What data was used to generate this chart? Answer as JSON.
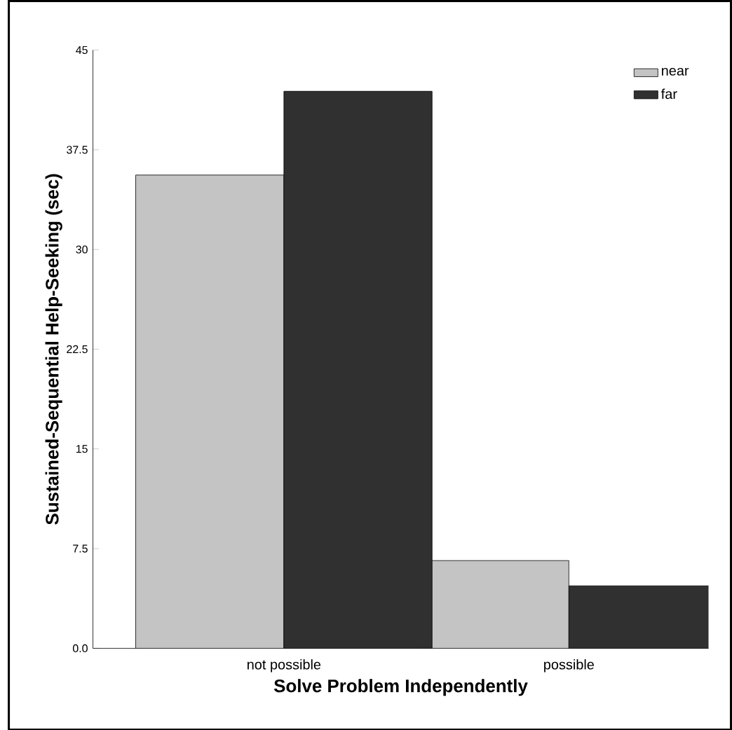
{
  "chart_data": {
    "type": "bar",
    "xlabel": "Solve Problem Independently",
    "ylabel": "Sustained-Sequential Help-Seeking (sec)",
    "categories": [
      "not possible",
      "possible"
    ],
    "series": [
      {
        "name": "near",
        "color": "#c4c4c4",
        "values": [
          35.6,
          6.6
        ]
      },
      {
        "name": "far",
        "color": "#303030",
        "values": [
          41.9,
          4.7
        ]
      }
    ],
    "ylim": [
      0,
      45
    ],
    "yticks": [
      {
        "value": 0,
        "label": "0.0"
      },
      {
        "value": 7.5,
        "label": "7.5"
      },
      {
        "value": 15,
        "label": "15"
      },
      {
        "value": 22.5,
        "label": "22.5"
      },
      {
        "value": 30,
        "label": "30"
      },
      {
        "value": 37.5,
        "label": "37.5"
      },
      {
        "value": 45,
        "label": "45"
      }
    ],
    "legend": "top right",
    "grid": false
  }
}
